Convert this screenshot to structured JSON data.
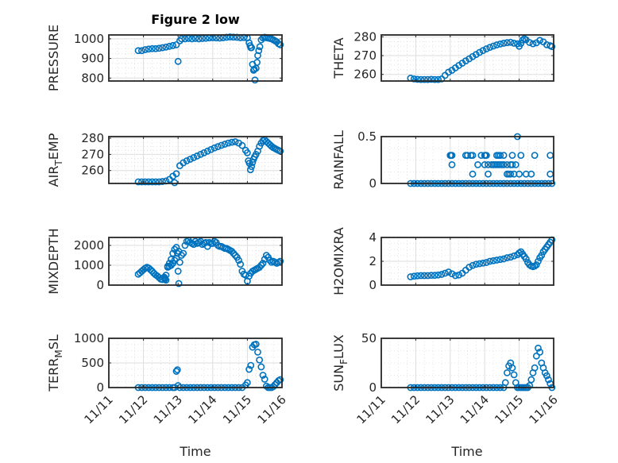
{
  "figure_title": "Figure 2 low",
  "chart_data": [
    {
      "type": "scatter",
      "name": "pressure",
      "title": "Figure 2 low",
      "ylabel": "PRESSURE",
      "ylabel_sub": null,
      "xlabel": "",
      "xlim": [
        0,
        5
      ],
      "ylim": [
        785,
        1020
      ],
      "yticks": [
        800,
        900,
        1000
      ],
      "ytick_labels": [
        "800",
        "900",
        "1000"
      ],
      "xtick_labels": [],
      "grid": true,
      "marker_color": "#0072BD",
      "x": [
        0.85,
        0.95,
        1.05,
        1.15,
        1.25,
        1.35,
        1.45,
        1.55,
        1.65,
        1.75,
        1.85,
        1.95,
        2.0,
        2.05,
        2.1,
        2.2,
        2.3,
        2.4,
        2.5,
        2.6,
        2.7,
        2.8,
        2.9,
        3.0,
        3.1,
        3.2,
        3.3,
        3.4,
        3.5,
        3.6,
        3.7,
        3.8,
        3.9,
        4.0,
        4.05,
        4.08,
        4.1,
        4.12,
        4.15,
        4.18,
        4.2,
        4.22,
        4.25,
        4.28,
        4.3,
        4.33,
        4.36,
        4.4,
        4.45,
        4.5,
        4.55,
        4.6,
        4.65,
        4.7,
        4.75,
        4.8,
        4.85,
        4.9,
        4.95
      ],
      "y": [
        940,
        940,
        945,
        948,
        950,
        950,
        952,
        955,
        958,
        962,
        966,
        970,
        885,
        990,
        1000,
        1000,
        1002,
        1000,
        1002,
        1000,
        1002,
        1003,
        1005,
        1006,
        1005,
        1004,
        1006,
        1008,
        1010,
        1009,
        1008,
        1006,
        1007,
        1005,
        980,
        965,
        955,
        955,
        870,
        840,
        845,
        790,
        850,
        880,
        915,
        940,
        960,
        995,
        1005,
        1008,
        1006,
        1004,
        1002,
        1000,
        995,
        990,
        985,
        975,
        970
      ]
    },
    {
      "type": "scatter",
      "name": "theta",
      "ylabel": "THETA",
      "ylim": [
        256.5,
        281
      ],
      "yticks": [
        260,
        270,
        280
      ],
      "ytick_labels": [
        "260",
        "270",
        "280"
      ],
      "xlim": [
        0,
        5
      ],
      "grid": true,
      "marker_color": "#0072BD",
      "x": [
        0.85,
        0.95,
        1.05,
        1.15,
        1.25,
        1.35,
        1.45,
        1.55,
        1.65,
        1.75,
        1.85,
        1.95,
        2.05,
        2.15,
        2.25,
        2.35,
        2.45,
        2.55,
        2.65,
        2.75,
        2.85,
        2.95,
        3.05,
        3.15,
        3.25,
        3.35,
        3.45,
        3.55,
        3.65,
        3.75,
        3.85,
        3.95,
        4.0,
        4.05,
        4.1,
        4.15,
        4.2,
        4.3,
        4.4,
        4.5,
        4.6,
        4.7,
        4.8,
        4.9,
        4.95
      ],
      "y": [
        258,
        257.6,
        257.4,
        257.3,
        257.3,
        257.3,
        257.4,
        257.3,
        257.3,
        257.6,
        259.5,
        261.2,
        262.2,
        263.5,
        264.8,
        266,
        267.2,
        268.3,
        269.5,
        270.6,
        271.7,
        272.7,
        273.6,
        274.4,
        275.1,
        275.7,
        276.2,
        276.6,
        276.9,
        277.1,
        276.6,
        276.3,
        275,
        276.5,
        278.3,
        279,
        278.4,
        277,
        276.3,
        276.8,
        278.1,
        277.3,
        275.8,
        275.3,
        274.8
      ]
    },
    {
      "type": "scatter",
      "name": "air_temp",
      "ylabel": "AIR_TEMP",
      "ylabel_main": "AIR",
      "ylabel_sub": "T",
      "ylabel_rest": "EMP",
      "ylim": [
        252,
        281
      ],
      "yticks": [
        260,
        270,
        280
      ],
      "ytick_labels": [
        "260",
        "270",
        "280"
      ],
      "xlim": [
        0,
        5
      ],
      "grid": true,
      "marker_color": "#0072BD",
      "x": [
        0.85,
        0.95,
        1.05,
        1.15,
        1.25,
        1.35,
        1.45,
        1.55,
        1.65,
        1.75,
        1.85,
        1.9,
        1.95,
        2.05,
        2.15,
        2.25,
        2.35,
        2.45,
        2.55,
        2.65,
        2.75,
        2.85,
        2.95,
        3.05,
        3.15,
        3.25,
        3.35,
        3.45,
        3.55,
        3.65,
        3.75,
        3.85,
        3.95,
        4.0,
        4.03,
        4.06,
        4.09,
        4.12,
        4.15,
        4.18,
        4.21,
        4.25,
        4.3,
        4.35,
        4.4,
        4.45,
        4.5,
        4.55,
        4.6,
        4.65,
        4.7,
        4.75,
        4.8,
        4.85,
        4.9,
        4.95
      ],
      "y": [
        253,
        253,
        253,
        253,
        253,
        253,
        253,
        253.2,
        253.5,
        254.5,
        256.5,
        252.5,
        258,
        263,
        264.8,
        266,
        267,
        268,
        269,
        270,
        271,
        272,
        273,
        274,
        274.8,
        275.6,
        276.3,
        277,
        277.5,
        277.8,
        277,
        275.5,
        272.5,
        271,
        266,
        264.5,
        260.5,
        262.5,
        265,
        267,
        268.5,
        270,
        272,
        275,
        277,
        278.5,
        279,
        278,
        277,
        276,
        275,
        274.2,
        273.6,
        273,
        272.5,
        272
      ]
    },
    {
      "type": "scatter",
      "name": "rainfall",
      "ylabel": "RAINFALL",
      "ylim": [
        0,
        0.5
      ],
      "yticks": [
        0,
        0.5
      ],
      "ytick_labels": [
        "0",
        "0.5"
      ],
      "xlim": [
        0,
        5
      ],
      "grid": true,
      "marker_color": "#0072BD",
      "x": [
        0.85,
        0.95,
        1.05,
        1.15,
        1.25,
        1.35,
        1.45,
        1.55,
        1.65,
        1.75,
        1.85,
        1.95,
        2.05,
        2.15,
        2.25,
        2.35,
        2.45,
        2.55,
        2.65,
        2.75,
        2.85,
        2.95,
        3.05,
        3.15,
        3.25,
        3.35,
        3.45,
        3.55,
        3.65,
        3.75,
        3.85,
        3.95,
        4.05,
        4.15,
        4.25,
        4.35,
        4.45,
        4.55,
        4.65,
        4.75,
        4.85,
        4.95,
        2.0,
        2.02,
        2.05,
        2.45,
        2.5,
        2.6,
        2.65,
        2.9,
        3.0,
        3.02,
        3.05,
        3.35,
        3.4,
        3.45,
        3.55,
        3.8,
        4.05,
        4.45,
        4.9,
        2.05,
        2.8,
        3.0,
        3.1,
        3.2,
        3.25,
        3.3,
        3.35,
        3.4,
        3.45,
        3.5,
        3.55,
        3.65,
        3.75,
        3.8,
        3.9,
        2.65,
        3.1,
        3.65,
        3.7,
        3.75,
        3.85,
        4.0,
        4.2,
        4.35,
        4.9,
        3.95
      ],
      "y": [
        0,
        0,
        0,
        0,
        0,
        0,
        0,
        0,
        0,
        0,
        0,
        0,
        0,
        0,
        0,
        0,
        0,
        0,
        0,
        0,
        0,
        0,
        0,
        0,
        0,
        0,
        0,
        0,
        0,
        0,
        0,
        0,
        0,
        0,
        0,
        0,
        0,
        0,
        0,
        0,
        0,
        0,
        0.3,
        0.3,
        0.3,
        0.3,
        0.3,
        0.3,
        0.3,
        0.3,
        0.3,
        0.3,
        0.3,
        0.3,
        0.3,
        0.3,
        0.3,
        0.3,
        0.3,
        0.3,
        0.3,
        0.2,
        0.2,
        0.2,
        0.2,
        0.2,
        0.2,
        0.2,
        0.2,
        0.2,
        0.2,
        0.2,
        0.2,
        0.2,
        0.2,
        0.2,
        0.2,
        0.1,
        0.1,
        0.1,
        0.1,
        0.1,
        0.1,
        0.1,
        0.1,
        0.1,
        0.1,
        0.5
      ]
    },
    {
      "type": "scatter",
      "name": "mixdepth",
      "ylabel": "MIXDEPTH",
      "ylim": [
        0,
        2400
      ],
      "yticks": [
        0,
        1000,
        2000
      ],
      "ytick_labels": [
        "0",
        "1000",
        "2000"
      ],
      "xlim": [
        0,
        5
      ],
      "grid": true,
      "marker_color": "#0072BD",
      "x": [
        0.85,
        0.9,
        0.95,
        1.0,
        1.05,
        1.1,
        1.15,
        1.2,
        1.25,
        1.3,
        1.35,
        1.4,
        1.45,
        1.5,
        1.55,
        1.6,
        1.65,
        1.7,
        1.75,
        1.8,
        1.85,
        1.9,
        1.95,
        2.0,
        2.02,
        2.05,
        2.1,
        2.15,
        2.2,
        2.25,
        2.3,
        2.35,
        2.4,
        2.45,
        2.5,
        2.55,
        2.6,
        2.65,
        2.7,
        2.75,
        2.8,
        2.85,
        2.9,
        2.95,
        3.0,
        3.05,
        3.1,
        3.15,
        3.2,
        3.25,
        3.3,
        3.35,
        3.4,
        3.45,
        3.5,
        3.55,
        3.6,
        3.65,
        3.7,
        3.75,
        3.8,
        3.85,
        3.9,
        3.95,
        4.0,
        4.05,
        4.1,
        4.15,
        4.2,
        4.25,
        4.3,
        4.35,
        4.4,
        4.45,
        4.5,
        4.55,
        4.6,
        4.65,
        4.7,
        4.75,
        4.8,
        4.85,
        4.9,
        4.95,
        1.6,
        1.62,
        1.65,
        1.7,
        1.75,
        1.8,
        1.85,
        1.9,
        1.95,
        1.98,
        2.02
      ],
      "y": [
        550,
        620,
        700,
        780,
        850,
        900,
        860,
        780,
        700,
        600,
        520,
        460,
        380,
        300,
        280,
        350,
        500,
        950,
        1100,
        1300,
        1600,
        1800,
        1900,
        700,
        80,
        1150,
        1500,
        1600,
        2000,
        2200,
        2250,
        2150,
        2100,
        2050,
        2200,
        2100,
        2150,
        2200,
        2050,
        2100,
        2150,
        1950,
        2150,
        2100,
        2100,
        2200,
        2150,
        2000,
        1950,
        1950,
        1900,
        1850,
        1850,
        1800,
        1750,
        1700,
        1600,
        1500,
        1400,
        1250,
        1050,
        700,
        550,
        500,
        200,
        450,
        600,
        700,
        750,
        800,
        850,
        900,
        1000,
        1100,
        1300,
        1500,
        1400,
        1250,
        1150,
        1200,
        1150,
        1100,
        1150,
        1200,
        400,
        300,
        250,
        900,
        950,
        1000,
        1100,
        1250,
        1350,
        1600,
        1700
      ]
    },
    {
      "type": "scatter",
      "name": "h2omixra",
      "ylabel": "H2OMIXRA",
      "ylim": [
        0,
        4
      ],
      "yticks": [
        0,
        2,
        4
      ],
      "ytick_labels": [
        "0",
        "2",
        "4"
      ],
      "xlim": [
        0,
        5
      ],
      "grid": true,
      "marker_color": "#0072BD",
      "x": [
        0.85,
        0.95,
        1.05,
        1.15,
        1.25,
        1.35,
        1.45,
        1.55,
        1.65,
        1.75,
        1.85,
        1.95,
        2.05,
        2.15,
        2.25,
        2.35,
        2.45,
        2.55,
        2.65,
        2.75,
        2.85,
        2.95,
        3.05,
        3.15,
        3.25,
        3.35,
        3.45,
        3.55,
        3.65,
        3.75,
        3.85,
        3.95,
        4.0,
        4.05,
        4.1,
        4.15,
        4.2,
        4.25,
        4.3,
        4.35,
        4.4,
        4.45,
        4.5,
        4.55,
        4.6,
        4.65,
        4.7,
        4.75,
        4.8,
        4.85,
        4.9,
        4.95
      ],
      "y": [
        0.7,
        0.75,
        0.78,
        0.8,
        0.8,
        0.8,
        0.82,
        0.82,
        0.85,
        0.9,
        1.0,
        1.1,
        0.95,
        0.8,
        0.85,
        1.0,
        1.25,
        1.5,
        1.65,
        1.75,
        1.8,
        1.85,
        1.9,
        2.0,
        2.05,
        2.1,
        2.15,
        2.2,
        2.3,
        2.35,
        2.45,
        2.55,
        2.7,
        2.8,
        2.6,
        2.4,
        2.2,
        1.9,
        1.7,
        1.6,
        1.55,
        1.6,
        1.7,
        2.0,
        2.3,
        2.5,
        2.8,
        3.0,
        3.2,
        3.4,
        3.6,
        3.8
      ]
    },
    {
      "type": "scatter",
      "name": "terr_msl",
      "ylabel": "TERR_MSL",
      "ylabel_main": "TERR",
      "ylabel_sub": "M",
      "ylabel_rest": "SL",
      "ylim": [
        0,
        1000
      ],
      "yticks": [
        0,
        500,
        1000
      ],
      "ytick_labels": [
        "0",
        "500",
        "1000"
      ],
      "xlim": [
        0,
        5
      ],
      "grid": true,
      "marker_color": "#0072BD",
      "x": [
        0.85,
        0.95,
        1.05,
        1.15,
        1.25,
        1.35,
        1.45,
        1.55,
        1.65,
        1.75,
        1.85,
        1.9,
        1.95,
        1.98,
        2.0,
        2.05,
        2.15,
        2.25,
        2.35,
        2.45,
        2.55,
        2.65,
        2.75,
        2.85,
        2.95,
        3.05,
        3.15,
        3.25,
        3.35,
        3.45,
        3.55,
        3.65,
        3.75,
        3.85,
        3.95,
        4.0,
        4.05,
        4.1,
        4.15,
        4.2,
        4.25,
        4.3,
        4.35,
        4.4,
        4.45,
        4.5,
        4.55,
        4.6,
        4.65,
        4.7,
        4.75,
        4.8,
        4.85,
        4.9,
        4.95
      ],
      "y": [
        0,
        0,
        0,
        0,
        0,
        0,
        0,
        0,
        0,
        0,
        0,
        0,
        330,
        360,
        40,
        0,
        0,
        0,
        0,
        0,
        0,
        0,
        0,
        0,
        0,
        0,
        0,
        0,
        0,
        0,
        0,
        0,
        0,
        0,
        50,
        100,
        370,
        450,
        820,
        870,
        880,
        720,
        560,
        420,
        250,
        170,
        30,
        0,
        0,
        0,
        20,
        60,
        100,
        140,
        160
      ]
    },
    {
      "type": "scatter",
      "name": "sun_flux",
      "ylabel": "SUN_FLUX",
      "ylabel_main": "SUN",
      "ylabel_sub": "F",
      "ylabel_rest": "LUX",
      "ylim": [
        0,
        50
      ],
      "yticks": [
        0,
        50
      ],
      "ytick_labels": [
        "0",
        "50"
      ],
      "xlim": [
        0,
        5
      ],
      "grid": true,
      "marker_color": "#0072BD",
      "x": [
        0.85,
        0.95,
        1.05,
        1.15,
        1.25,
        1.35,
        1.45,
        1.55,
        1.65,
        1.75,
        1.85,
        1.95,
        2.05,
        2.15,
        2.25,
        2.35,
        2.45,
        2.55,
        2.65,
        2.75,
        2.85,
        2.95,
        3.05,
        3.15,
        3.25,
        3.35,
        3.45,
        3.55,
        3.6,
        3.65,
        3.7,
        3.75,
        3.8,
        3.85,
        3.9,
        3.95,
        4.0,
        4.05,
        4.1,
        4.15,
        4.2,
        4.25,
        4.3,
        4.35,
        4.4,
        4.45,
        4.5,
        4.55,
        4.6,
        4.65,
        4.7,
        4.75,
        4.8,
        4.85,
        4.9,
        4.95
      ],
      "y": [
        0,
        0,
        0,
        0,
        0,
        0,
        0,
        0,
        0,
        0,
        0,
        0,
        0,
        0,
        0,
        0,
        0,
        0,
        0,
        0,
        0,
        0,
        0,
        0,
        0,
        0,
        0,
        0,
        5,
        15,
        22,
        25,
        20,
        13,
        5,
        0,
        0,
        0,
        0,
        0,
        0,
        0,
        2,
        8,
        15,
        20,
        32,
        40,
        36,
        25,
        20,
        15,
        12,
        8,
        4,
        0
      ]
    }
  ],
  "x_axis": {
    "label": "Time",
    "tick_labels": [
      "11/11",
      "11/12",
      "11/13",
      "11/14",
      "11/15",
      "11/16"
    ]
  }
}
